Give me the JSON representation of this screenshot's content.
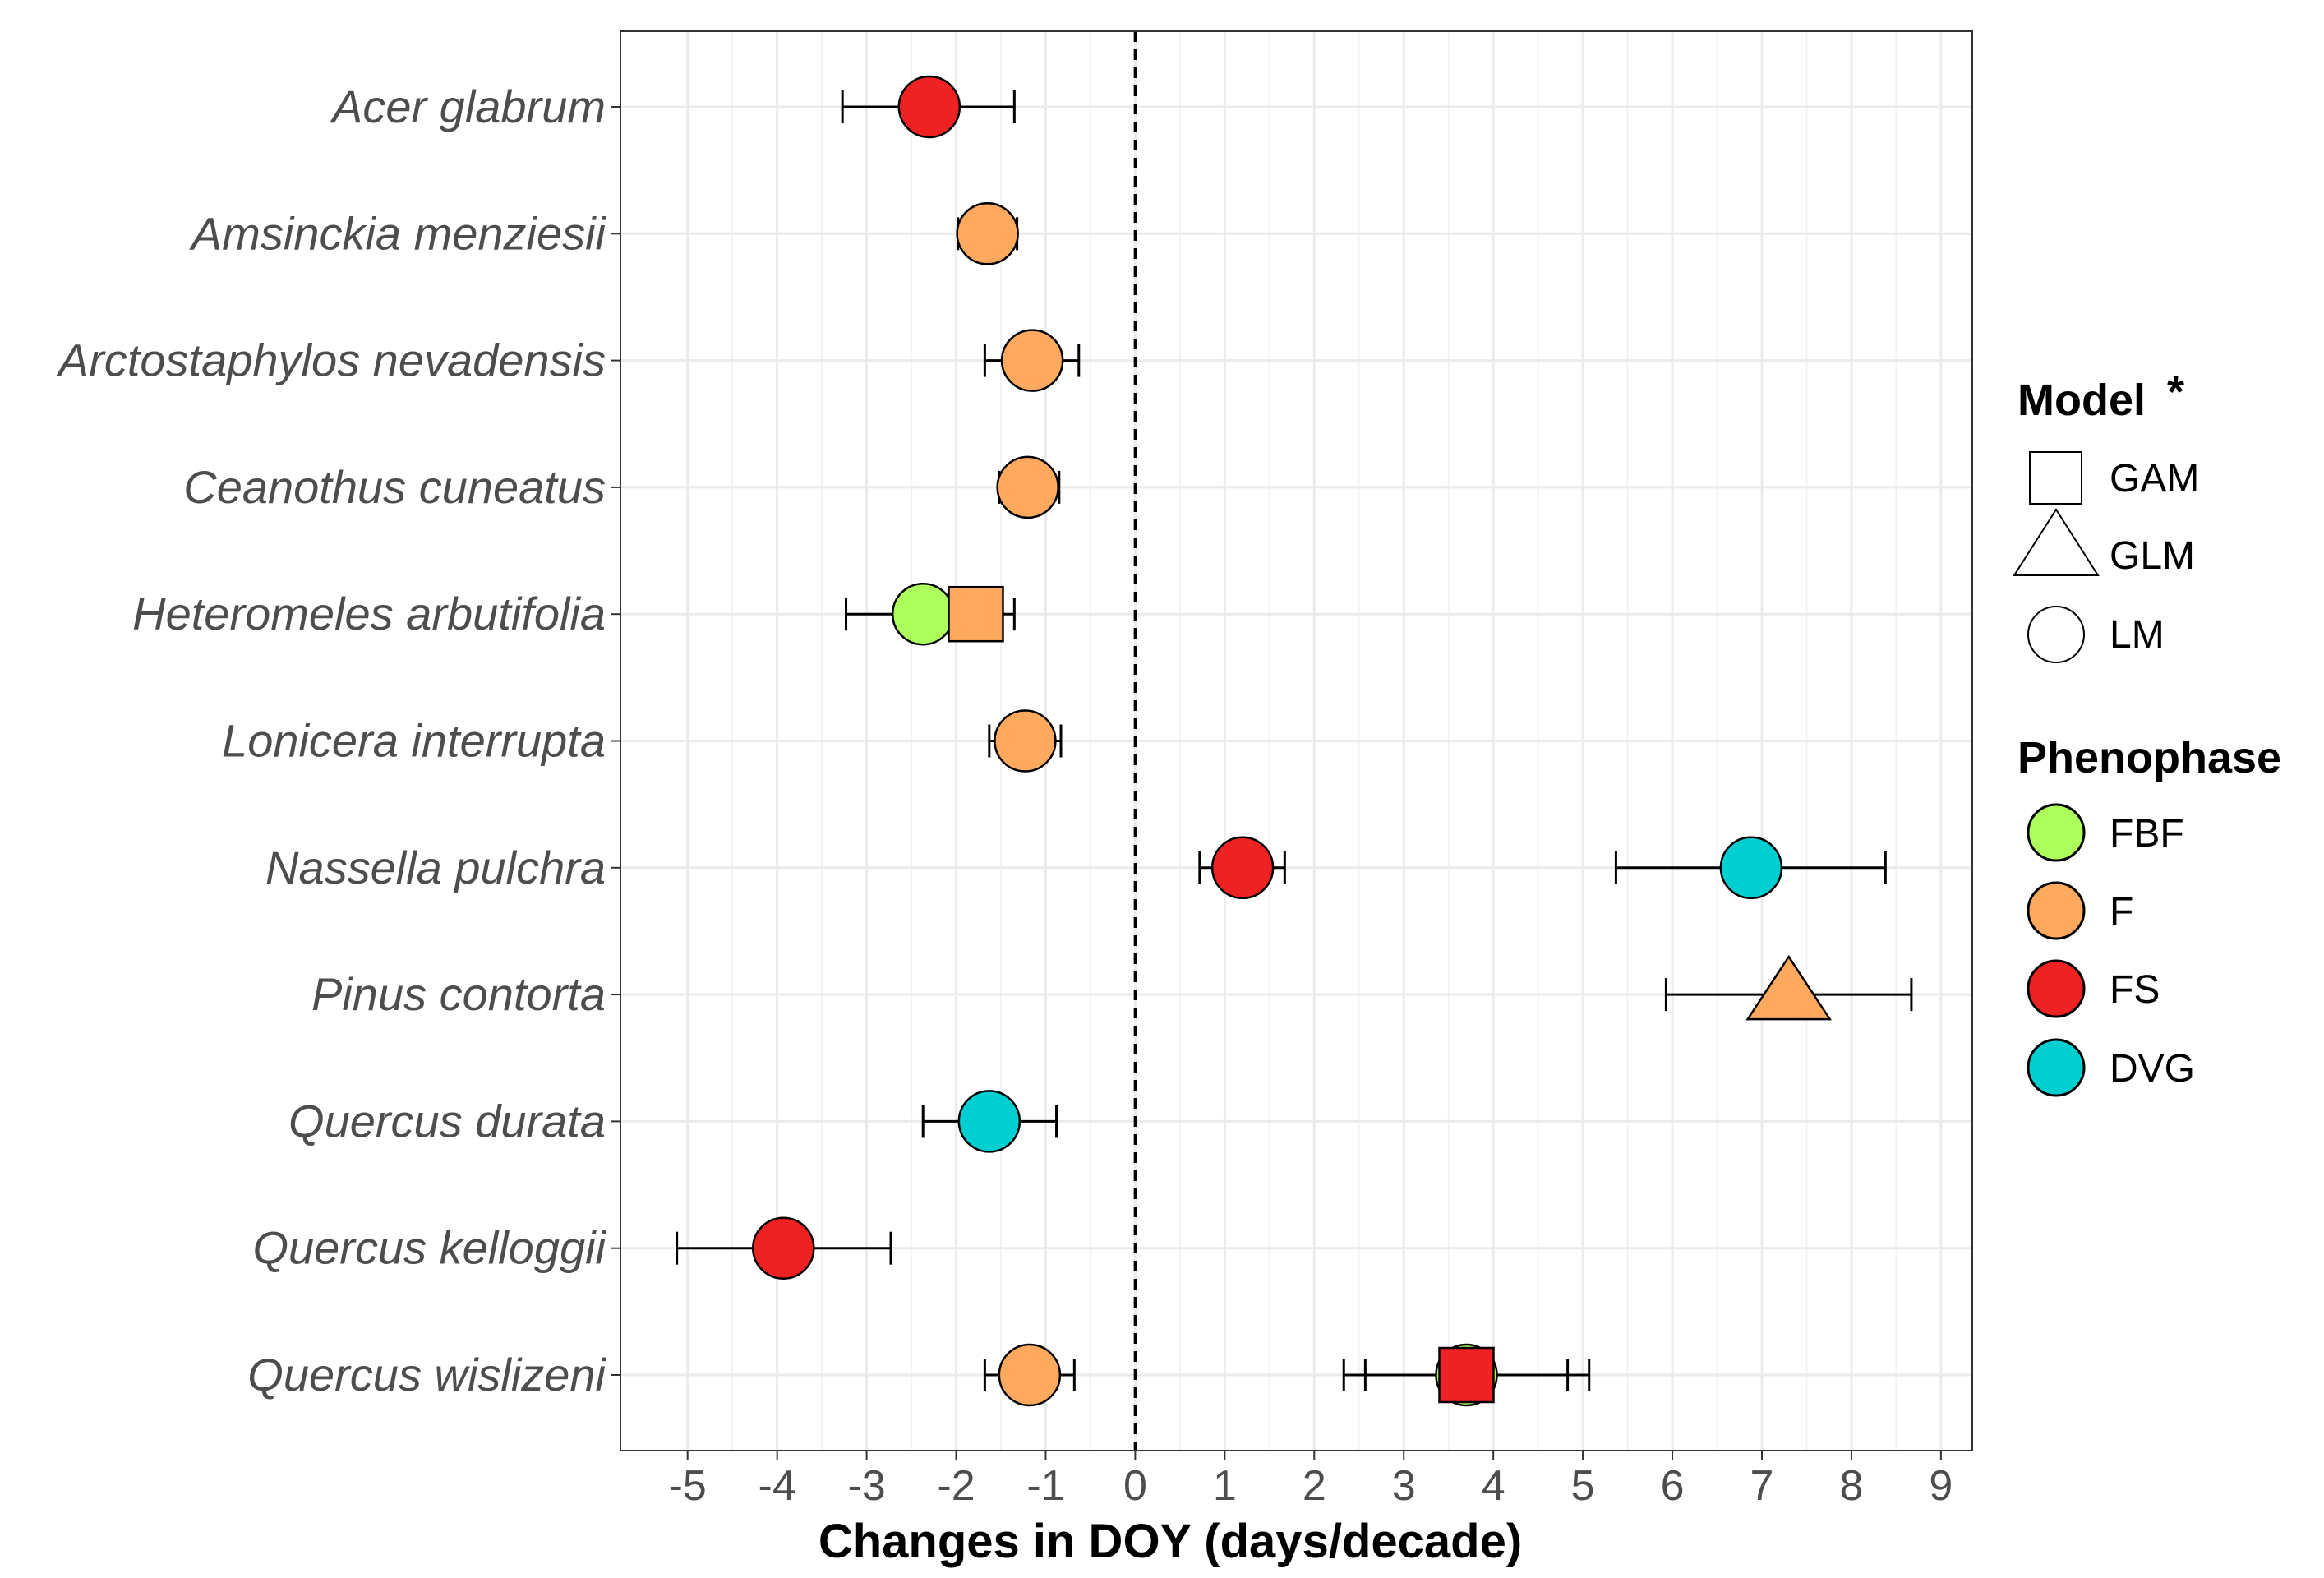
{
  "chart_data": {
    "type": "scatter",
    "xlabel": "Changes in DOY (days/decade)",
    "xlim": [
      -5.75,
      9.35
    ],
    "xticks": [
      -5,
      -4,
      -3,
      -2,
      -1,
      0,
      1,
      2,
      3,
      4,
      5,
      6,
      7,
      8,
      9
    ],
    "reference_line": 0,
    "species": [
      "Acer glabrum",
      "Amsinckia menziesii",
      "Arctostaphylos nevadensis",
      "Ceanothus cuneatus",
      "Heteromeles arbutifolia",
      "Lonicera interrupta",
      "Nassella pulchra",
      "Pinus contorta",
      "Quercus durata",
      "Quercus kelloggii",
      "Quercus wislizeni"
    ],
    "points": [
      {
        "species": "Acer glabrum",
        "phenophase": "FS",
        "model": "LM",
        "value": -2.3,
        "lower": -3.27,
        "upper": -1.35
      },
      {
        "species": "Amsinckia menziesii",
        "phenophase": "F",
        "model": "LM",
        "value": -1.65,
        "lower": -1.98,
        "upper": -1.32
      },
      {
        "species": "Arctostaphylos nevadensis",
        "phenophase": "F",
        "model": "LM",
        "value": -1.15,
        "lower": -1.68,
        "upper": -0.63
      },
      {
        "species": "Ceanothus cuneatus",
        "phenophase": "F",
        "model": "LM",
        "value": -1.2,
        "lower": -1.52,
        "upper": -0.85
      },
      {
        "species": "Heteromeles arbutifolia",
        "phenophase": "FBF",
        "model": "LM",
        "value": -2.37,
        "lower": -3.23,
        "upper": -2.2
      },
      {
        "species": "Heteromeles arbutifolia",
        "phenophase": "F",
        "model": "GAM",
        "value": -1.78,
        "lower": -2.08,
        "upper": -1.35
      },
      {
        "species": "Lonicera interrupta",
        "phenophase": "F",
        "model": "LM",
        "value": -1.23,
        "lower": -1.63,
        "upper": -0.83
      },
      {
        "species": "Nassella pulchra",
        "phenophase": "FS",
        "model": "LM",
        "value": 1.2,
        "lower": 0.72,
        "upper": 1.67
      },
      {
        "species": "Nassella pulchra",
        "phenophase": "DVG",
        "model": "LM",
        "value": 6.88,
        "lower": 5.37,
        "upper": 8.38
      },
      {
        "species": "Pinus contorta",
        "phenophase": "F",
        "model": "GLM",
        "value": 7.3,
        "lower": 5.93,
        "upper": 8.67
      },
      {
        "species": "Quercus durata",
        "phenophase": "DVG",
        "model": "LM",
        "value": -1.63,
        "lower": -2.37,
        "upper": -0.88
      },
      {
        "species": "Quercus kelloggii",
        "phenophase": "FS",
        "model": "LM",
        "value": -3.93,
        "lower": -5.12,
        "upper": -2.73
      },
      {
        "species": "Quercus wislizeni",
        "phenophase": "F",
        "model": "LM",
        "value": -1.18,
        "lower": -1.68,
        "upper": -0.68
      },
      {
        "species": "Quercus wislizeni",
        "phenophase": "FBF",
        "model": "LM",
        "value": 3.7,
        "lower": 2.33,
        "upper": 5.07
      },
      {
        "species": "Quercus wislizeni",
        "phenophase": "FS",
        "model": "GAM",
        "value": 3.7,
        "lower": 2.57,
        "upper": 4.83
      }
    ],
    "legend": {
      "model_title": "Model",
      "model_marker": "*",
      "models": [
        "GAM",
        "GLM",
        "LM"
      ],
      "phenophase_title": "Phenophase",
      "phenophases": [
        {
          "name": "FBF",
          "color": "#adff5c"
        },
        {
          "name": "F",
          "color": "#ffa95e"
        },
        {
          "name": "FS",
          "color": "#ee2222"
        },
        {
          "name": "DVG",
          "color": "#00ced1"
        }
      ]
    }
  }
}
